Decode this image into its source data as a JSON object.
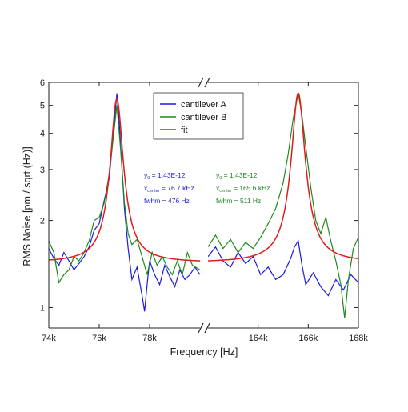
{
  "chart_data": {
    "type": "line",
    "title": "",
    "xlabel": "Frequency [Hz]",
    "ylabel": "RMS Noise [pm / sqrt (Hz)]",
    "y_scale": "log",
    "ylim": [
      0.85,
      6.0
    ],
    "y_ticks": [
      {
        "value": 1,
        "label": "1"
      },
      {
        "value": 2,
        "label": "2"
      },
      {
        "value": 3,
        "label": "3"
      },
      {
        "value": 4,
        "label": "4"
      },
      {
        "value": 5,
        "label": "5"
      },
      {
        "value": 6,
        "label": "6"
      }
    ],
    "x_broken": true,
    "panels": [
      {
        "name": "left",
        "xlim": [
          74000,
          80000
        ],
        "ticks": [
          {
            "value": 74000,
            "label": "74k"
          },
          {
            "value": 76000,
            "label": "76k"
          },
          {
            "value": 78000,
            "label": "78k"
          }
        ],
        "fit": {
          "y0": 1.43,
          "amplitude": 3.84,
          "center": 76700,
          "fwhm": 476
        },
        "annotation": {
          "color": "#2323d8",
          "lines": [
            {
              "prefix": "y",
              "sub": "0",
              "text": " = 1.43E-12"
            },
            {
              "prefix": "x",
              "sub": "center",
              "text": " = 76.7 kHz"
            },
            {
              "prefix": "",
              "sub": "",
              "text": "fwhm = 476 Hz"
            }
          ]
        }
      },
      {
        "name": "right",
        "xlim": [
          162000,
          168000
        ],
        "ticks": [
          {
            "value": 164000,
            "label": "164k"
          },
          {
            "value": 166000,
            "label": "166k"
          },
          {
            "value": 168000,
            "label": "168k"
          }
        ],
        "fit": {
          "y0": 1.43,
          "amplitude": 4.08,
          "center": 165600,
          "fwhm": 511
        },
        "annotation": {
          "color": "#1f7f1f",
          "lines": [
            {
              "prefix": "y",
              "sub": "0",
              "text": " = 1.43E-12"
            },
            {
              "prefix": "x",
              "sub": "center",
              "text": " = 165.6 kHz"
            },
            {
              "prefix": "",
              "sub": "",
              "text": "fwhm = 511 Hz"
            }
          ]
        }
      }
    ],
    "series": [
      {
        "name": "cantilever A",
        "color": "#1a1ae6",
        "left_points": [
          [
            74000,
            1.6
          ],
          [
            74200,
            1.48
          ],
          [
            74400,
            1.4
          ],
          [
            74600,
            1.55
          ],
          [
            74800,
            1.45
          ],
          [
            75000,
            1.35
          ],
          [
            75200,
            1.42
          ],
          [
            75400,
            1.5
          ],
          [
            75600,
            1.62
          ],
          [
            75800,
            1.85
          ],
          [
            76000,
            1.95
          ],
          [
            76200,
            2.35
          ],
          [
            76400,
            2.8
          ],
          [
            76550,
            3.9
          ],
          [
            76700,
            5.5
          ],
          [
            76800,
            4.3
          ],
          [
            76900,
            3.1
          ],
          [
            77000,
            2.2
          ],
          [
            77150,
            1.6
          ],
          [
            77300,
            1.25
          ],
          [
            77500,
            1.38
          ],
          [
            77700,
            1.1
          ],
          [
            77800,
            0.97
          ],
          [
            77900,
            1.2
          ],
          [
            78000,
            1.45
          ],
          [
            78200,
            1.3
          ],
          [
            78400,
            1.2
          ],
          [
            78600,
            1.4
          ],
          [
            78800,
            1.28
          ],
          [
            79000,
            1.18
          ],
          [
            79200,
            1.35
          ],
          [
            79400,
            1.25
          ],
          [
            79600,
            1.3
          ],
          [
            79800,
            1.38
          ],
          [
            80000,
            1.3
          ]
        ],
        "right_points": [
          [
            162000,
            1.5
          ],
          [
            162300,
            1.62
          ],
          [
            162600,
            1.45
          ],
          [
            162900,
            1.38
          ],
          [
            163200,
            1.55
          ],
          [
            163500,
            1.42
          ],
          [
            163800,
            1.5
          ],
          [
            164100,
            1.3
          ],
          [
            164400,
            1.38
          ],
          [
            164700,
            1.25
          ],
          [
            165000,
            1.3
          ],
          [
            165300,
            1.48
          ],
          [
            165450,
            1.62
          ],
          [
            165600,
            1.7
          ],
          [
            165750,
            1.4
          ],
          [
            165900,
            1.2
          ],
          [
            166200,
            1.32
          ],
          [
            166500,
            1.18
          ],
          [
            166800,
            1.1
          ],
          [
            167100,
            1.25
          ],
          [
            167400,
            1.15
          ],
          [
            167700,
            1.3
          ],
          [
            168000,
            1.22
          ]
        ]
      },
      {
        "name": "cantilever B",
        "color": "#1e8a1e",
        "left_points": [
          [
            74000,
            1.7
          ],
          [
            74200,
            1.55
          ],
          [
            74400,
            1.22
          ],
          [
            74600,
            1.3
          ],
          [
            74800,
            1.35
          ],
          [
            75000,
            1.5
          ],
          [
            75200,
            1.45
          ],
          [
            75400,
            1.55
          ],
          [
            75600,
            1.7
          ],
          [
            75800,
            2.0
          ],
          [
            76000,
            2.05
          ],
          [
            76200,
            2.3
          ],
          [
            76400,
            2.9
          ],
          [
            76550,
            3.8
          ],
          [
            76700,
            5.0
          ],
          [
            76850,
            3.5
          ],
          [
            77000,
            2.3
          ],
          [
            77150,
            1.8
          ],
          [
            77300,
            1.65
          ],
          [
            77500,
            1.72
          ],
          [
            77700,
            1.5
          ],
          [
            77900,
            1.3
          ],
          [
            78100,
            1.55
          ],
          [
            78300,
            1.4
          ],
          [
            78500,
            1.5
          ],
          [
            78700,
            1.38
          ],
          [
            78900,
            1.3
          ],
          [
            79100,
            1.45
          ],
          [
            79300,
            1.3
          ],
          [
            79500,
            1.55
          ],
          [
            79700,
            1.4
          ],
          [
            80000,
            1.35
          ]
        ],
        "right_points": [
          [
            162000,
            1.62
          ],
          [
            162300,
            1.78
          ],
          [
            162600,
            1.6
          ],
          [
            162900,
            1.72
          ],
          [
            163200,
            1.55
          ],
          [
            163500,
            1.68
          ],
          [
            163800,
            1.6
          ],
          [
            164100,
            1.75
          ],
          [
            164400,
            1.95
          ],
          [
            164700,
            2.2
          ],
          [
            165000,
            2.7
          ],
          [
            165200,
            3.4
          ],
          [
            165400,
            4.5
          ],
          [
            165600,
            5.5
          ],
          [
            165750,
            4.6
          ],
          [
            165900,
            3.6
          ],
          [
            166100,
            2.6
          ],
          [
            166300,
            2.0
          ],
          [
            166500,
            1.8
          ],
          [
            166700,
            2.05
          ],
          [
            166900,
            1.7
          ],
          [
            167100,
            1.45
          ],
          [
            167300,
            1.2
          ],
          [
            167450,
            0.92
          ],
          [
            167600,
            1.25
          ],
          [
            167800,
            1.6
          ],
          [
            168000,
            1.75
          ]
        ]
      },
      {
        "name": "fit",
        "color": "#e01b1b"
      }
    ],
    "legend": {
      "position": "top-center"
    }
  }
}
